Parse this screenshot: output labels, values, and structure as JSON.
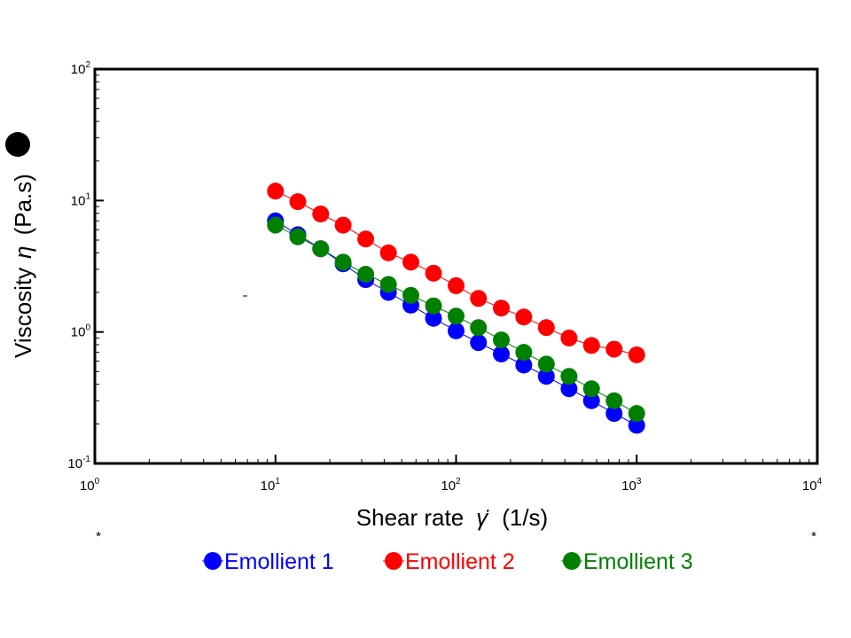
{
  "chart_data": {
    "type": "scatter",
    "title": "",
    "xlabel": "Shear rate",
    "xlabel_symbol": "γ̇",
    "xlabel_unit": "(1/s)",
    "ylabel": "Viscosity",
    "ylabel_symbol": "η",
    "ylabel_unit": "(Pa.s)",
    "xscale": "log",
    "yscale": "log",
    "xlim": [
      1,
      10000
    ],
    "ylim": [
      0.1,
      100
    ],
    "x_ticks": [
      {
        "base": "10",
        "exp": "0"
      },
      {
        "base": "10",
        "exp": "1"
      },
      {
        "base": "10",
        "exp": "2"
      },
      {
        "base": "10",
        "exp": "3"
      },
      {
        "base": "10",
        "exp": "4"
      }
    ],
    "y_ticks": [
      {
        "base": "10",
        "exp": "-1"
      },
      {
        "base": "10",
        "exp": "0"
      },
      {
        "base": "10",
        "exp": "1"
      },
      {
        "base": "10",
        "exp": "2"
      }
    ],
    "grid": false,
    "legend_position": "bottom",
    "x": [
      10,
      13.3,
      17.8,
      23.7,
      31.6,
      42.2,
      56.2,
      75,
      100,
      133,
      178,
      237,
      316,
      422,
      562,
      750,
      1000
    ],
    "series": [
      {
        "name": "Emollient 1",
        "color": "#0000ff",
        "values": [
          7.0,
          5.5,
          4.3,
          3.3,
          2.5,
          2.0,
          1.6,
          1.27,
          1.02,
          0.83,
          0.68,
          0.56,
          0.46,
          0.37,
          0.3,
          0.24,
          0.195
        ]
      },
      {
        "name": "Emollient 2",
        "color": "#ff0000",
        "values": [
          11.8,
          9.8,
          7.9,
          6.5,
          5.1,
          4.0,
          3.4,
          2.8,
          2.25,
          1.8,
          1.52,
          1.3,
          1.08,
          0.9,
          0.79,
          0.74,
          0.67
        ]
      },
      {
        "name": "Emollient 3",
        "color": "#008000",
        "values": [
          6.5,
          5.3,
          4.3,
          3.4,
          2.75,
          2.3,
          1.9,
          1.58,
          1.32,
          1.08,
          0.87,
          0.7,
          0.57,
          0.46,
          0.37,
          0.3,
          0.24
        ]
      }
    ]
  },
  "marks": {
    "left_asterisk": "*",
    "right_asterisk": "*",
    "small_dash": "-"
  }
}
